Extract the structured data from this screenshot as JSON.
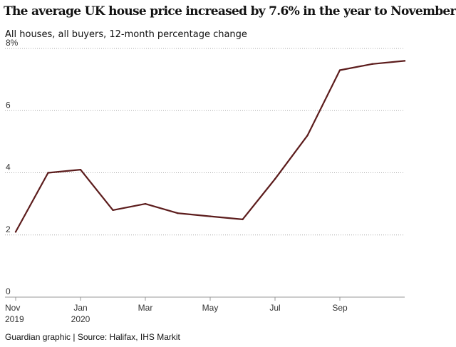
{
  "chart_data": {
    "type": "line",
    "title": "The average UK house price increased by 7.6% in the year to November",
    "subtitle": "All houses, all buyers, 12-month percentage change",
    "source": "Guardian graphic | Source: Halifax, IHS Markit",
    "x": [
      "Nov 2019",
      "Dec 2019",
      "Jan 2020",
      "Feb 2020",
      "Mar 2020",
      "Apr 2020",
      "May 2020",
      "Jun 2020",
      "Jul 2020",
      "Aug 2020",
      "Sep 2020",
      "Oct 2020",
      "Nov 2020"
    ],
    "series": [
      {
        "values": [
          2.1,
          4.0,
          4.1,
          2.8,
          3.0,
          2.7,
          2.6,
          2.5,
          3.8,
          5.2,
          7.3,
          7.5,
          7.6
        ]
      }
    ],
    "ylim": [
      0,
      8
    ],
    "y_ticks": [
      {
        "value": 0,
        "label": "0"
      },
      {
        "value": 2,
        "label": "2"
      },
      {
        "value": 4,
        "label": "4"
      },
      {
        "value": 6,
        "label": "6"
      },
      {
        "value": 8,
        "label": "8%"
      }
    ],
    "x_ticks": [
      {
        "index": 0,
        "line1": "Nov",
        "line2": "2019"
      },
      {
        "index": 2,
        "line1": "Jan",
        "line2": "2020"
      },
      {
        "index": 4,
        "line1": "Mar",
        "line2": ""
      },
      {
        "index": 6,
        "line1": "May",
        "line2": ""
      },
      {
        "index": 8,
        "line1": "Jul",
        "line2": ""
      },
      {
        "index": 10,
        "line1": "Sep",
        "line2": ""
      }
    ],
    "grid": true,
    "legend": "none",
    "colors": {
      "line": "#5c1c1c",
      "grid": "#aaaaaa",
      "axis": "#999999",
      "tick_text": "#333333"
    }
  }
}
